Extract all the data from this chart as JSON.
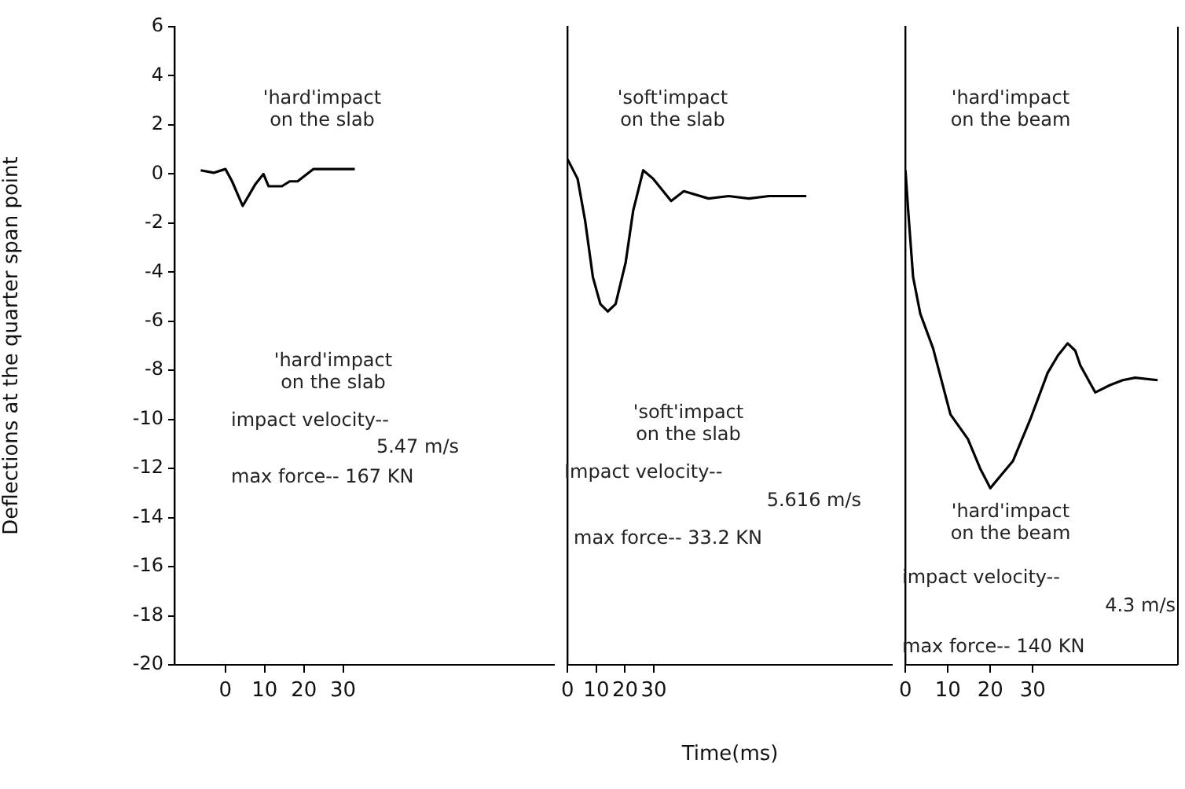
{
  "chart_data": [
    {
      "type": "line",
      "ylabel": "Deflections at the quarter span point",
      "color": "#000000",
      "marker": "none",
      "x": [
        -6.3,
        -2.9,
        0,
        1.7,
        4.4,
        7.7,
        9.7,
        11,
        14.4,
        16.4,
        18.4,
        22.4,
        27.7,
        33
      ],
      "values": [
        0.15,
        0.05,
        0.2,
        -0.3,
        -1.3,
        -0.4,
        0,
        -0.5,
        -0.5,
        -0.3,
        -0.3,
        0.2,
        0.2,
        0.2
      ],
      "xlim": [
        -13,
        84
      ],
      "xticks": [
        0,
        10,
        20,
        30
      ],
      "ylim": [
        -20,
        6
      ],
      "yticks": [
        -20,
        -18,
        -16,
        -14,
        -12,
        -10,
        -8,
        -6,
        -4,
        -2,
        0,
        2,
        4,
        6
      ],
      "annotations": [
        "'hard'impact\non the slab",
        "'hard'impact\non the slab",
        "impact velocity--",
        "5.47 m/s",
        "max force-- 167 KN"
      ]
    },
    {
      "type": "line",
      "xlabel": "Time(ms)",
      "color": "#000000",
      "marker": "none",
      "tick_labels": "x",
      "x": [
        0,
        3.5,
        6.1,
        8.8,
        11.4,
        14,
        16.7,
        20.2,
        22.8,
        26.3,
        29.8,
        36,
        40.4,
        49,
        56,
        63,
        70,
        83
      ],
      "values": [
        0.6,
        -0.2,
        -1.9,
        -4.2,
        -5.3,
        -5.6,
        -5.3,
        -3.6,
        -1.5,
        0.15,
        -0.2,
        -1.1,
        -0.7,
        -1.0,
        -0.9,
        -1.0,
        -0.9,
        -0.9
      ],
      "xlim": [
        0,
        113
      ],
      "xticks": [
        0,
        10,
        20,
        30
      ],
      "ylim": [
        -20,
        6
      ],
      "annotations": [
        "'soft'impact\non the slab",
        "'soft'impact\non the slab",
        "Impact velocity--",
        "5.616 m/s",
        "max force-- 33.2 KN"
      ]
    },
    {
      "type": "line",
      "color": "#000000",
      "marker": "none",
      "tick_labels": "x",
      "x": [
        0,
        0.6,
        1.8,
        3.5,
        6.5,
        10.6,
        14.7,
        17.6,
        20,
        22.4,
        25.3,
        29.4,
        33.5,
        35.9,
        38.2,
        40,
        41.2,
        44.7,
        48.2,
        51.2,
        54.1,
        59.4
      ],
      "values": [
        0.15,
        -1.4,
        -4.2,
        -5.7,
        -7.1,
        -9.8,
        -10.8,
        -12,
        -12.8,
        -12.3,
        -11.7,
        -10,
        -8.1,
        -7.4,
        -6.9,
        -7.2,
        -7.8,
        -8.9,
        -8.6,
        -8.4,
        -8.3,
        -8.4
      ],
      "xlim": [
        0,
        64
      ],
      "xticks": [
        0,
        10,
        20,
        30
      ],
      "ylim": [
        -20,
        6
      ],
      "annotations": [
        "'hard'impact\non the beam",
        "'hard'impact\non the beam",
        "impact velocity--",
        "4.3 m/s",
        "max force-- 140 KN"
      ]
    }
  ]
}
